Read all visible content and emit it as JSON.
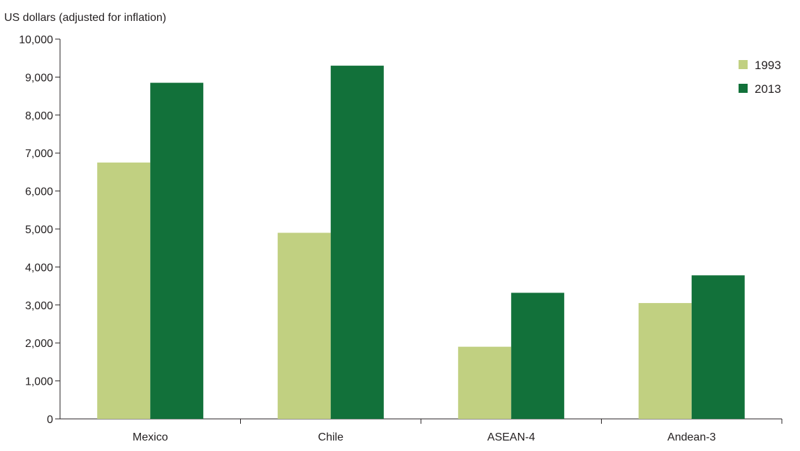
{
  "chart_data": {
    "type": "bar",
    "title": "",
    "ylabel": "US dollars (adjusted for inflation)",
    "xlabel": "",
    "categories": [
      "Mexico",
      "Chile",
      "ASEAN-4",
      "Andean-3"
    ],
    "series": [
      {
        "name": "1993",
        "color": "#c1d081",
        "values": [
          6750,
          4900,
          1900,
          3050
        ]
      },
      {
        "name": "2013",
        "color": "#12713a",
        "values": [
          8850,
          9300,
          3320,
          3780
        ]
      }
    ],
    "ylim": [
      0,
      10000
    ],
    "yticks": [
      0,
      1000,
      2000,
      3000,
      4000,
      5000,
      6000,
      7000,
      8000,
      9000,
      10000
    ],
    "ytick_labels": [
      "0",
      "1,000",
      "2,000",
      "3,000",
      "4,000",
      "5,000",
      "6,000",
      "7,000",
      "8,000",
      "9,000",
      "10,000"
    ],
    "grid": false,
    "legend_position": "top-right"
  }
}
